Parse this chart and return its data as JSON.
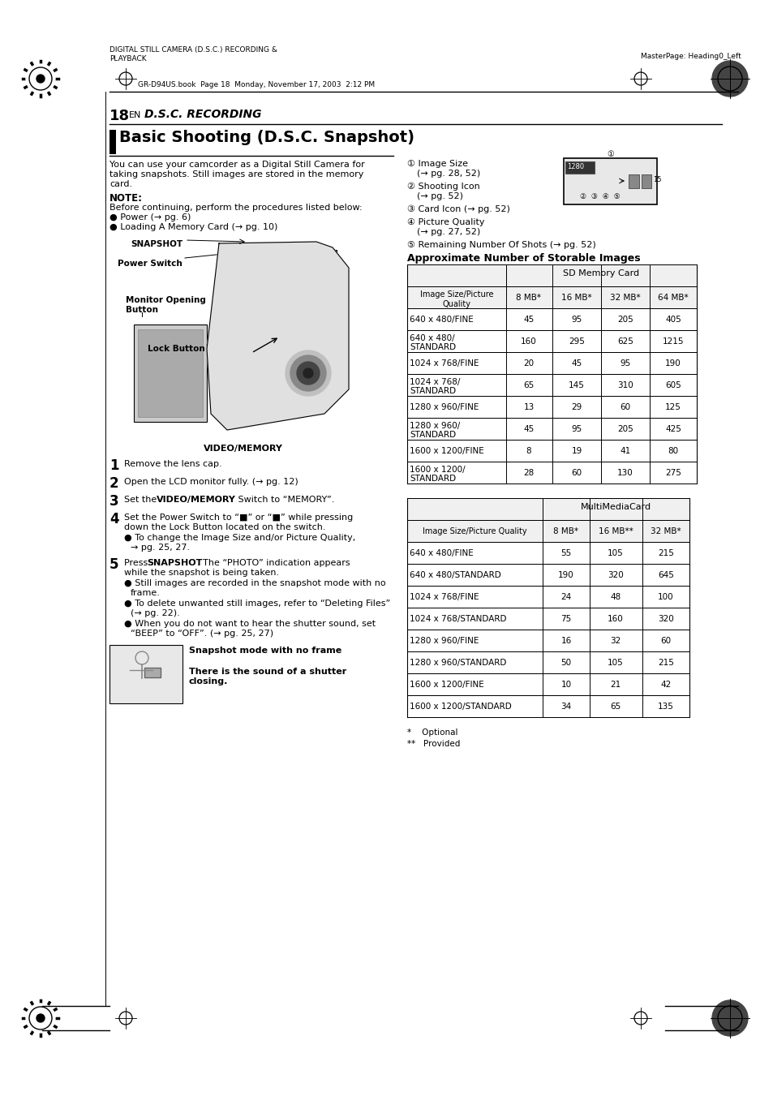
{
  "page_title_left": "DIGITAL STILL CAMERA (D.S.C.) RECORDING &\nPLAYBACK",
  "page_title_right": "MasterPage: Heading0_Left",
  "page_file_info": "GR-D94US.book  Page 18  Monday, November 17, 2003  2:12 PM",
  "sd_table_rows": [
    [
      "640 x 480/FINE",
      "45",
      "95",
      "205",
      "405"
    ],
    [
      "640 x 480/\nSTANDARD",
      "160",
      "295",
      "625",
      "1215"
    ],
    [
      "1024 x 768/FINE",
      "20",
      "45",
      "95",
      "190"
    ],
    [
      "1024 x 768/\nSTANDARD",
      "65",
      "145",
      "310",
      "605"
    ],
    [
      "1280 x 960/FINE",
      "13",
      "29",
      "60",
      "125"
    ],
    [
      "1280 x 960/\nSTANDARD",
      "45",
      "95",
      "205",
      "425"
    ],
    [
      "1600 x 1200/FINE",
      "8",
      "19",
      "41",
      "80"
    ],
    [
      "1600 x 1200/\nSTANDARD",
      "28",
      "60",
      "130",
      "275"
    ]
  ],
  "mmc_table_rows": [
    [
      "640 x 480/FINE",
      "55",
      "105",
      "215"
    ],
    [
      "640 x 480/STANDARD",
      "190",
      "320",
      "645"
    ],
    [
      "1024 x 768/FINE",
      "24",
      "48",
      "100"
    ],
    [
      "1024 x 768/STANDARD",
      "75",
      "160",
      "320"
    ],
    [
      "1280 x 960/FINE",
      "16",
      "32",
      "60"
    ],
    [
      "1280 x 960/STANDARD",
      "50",
      "105",
      "215"
    ],
    [
      "1600 x 1200/FINE",
      "10",
      "21",
      "42"
    ],
    [
      "1600 x 1200/STANDARD",
      "34",
      "65",
      "135"
    ]
  ],
  "bg_color": "#ffffff"
}
